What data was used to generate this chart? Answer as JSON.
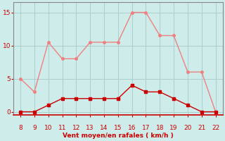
{
  "hours": [
    8,
    9,
    10,
    11,
    12,
    13,
    14,
    15,
    16,
    17,
    18,
    19,
    20,
    21,
    22
  ],
  "wind_avg": [
    0,
    0,
    1,
    2,
    2,
    2,
    2,
    2,
    4,
    3,
    3,
    2,
    1,
    0,
    0
  ],
  "wind_gust": [
    5,
    3,
    10.5,
    8,
    8,
    10.5,
    10.5,
    10.5,
    15,
    15,
    11.5,
    11.5,
    6,
    6,
    0
  ],
  "bg_color": "#cdecea",
  "grid_color": "#aacfcd",
  "line_avg_color": "#cc0000",
  "line_gust_color": "#f08080",
  "xlabel": "Vent moyen/en rafales ( km/h )",
  "yticks": [
    0,
    5,
    10,
    15
  ],
  "xticks": [
    8,
    9,
    10,
    11,
    12,
    13,
    14,
    15,
    16,
    17,
    18,
    19,
    20,
    21,
    22
  ],
  "xlim": [
    7.5,
    22.5
  ],
  "ylim": [
    -0.5,
    16.5
  ]
}
